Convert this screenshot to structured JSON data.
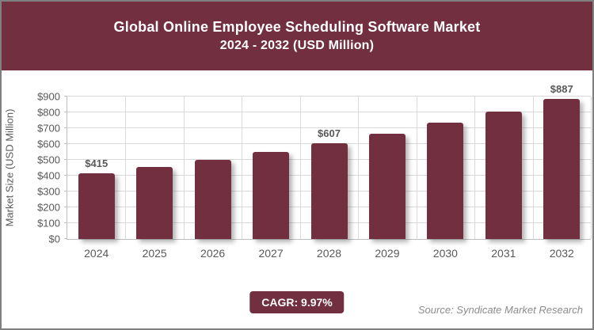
{
  "header": {
    "title_line1": "Global Online Employee Scheduling Software Market",
    "title_line2": "2024 - 2032 (USD Million)"
  },
  "chart_data": {
    "type": "bar",
    "title": "Global Online Employee Scheduling Software Market",
    "subtitle": "2024 - 2032 (USD Million)",
    "categories": [
      "2024",
      "2025",
      "2026",
      "2027",
      "2028",
      "2029",
      "2030",
      "2031",
      "2032"
    ],
    "values": [
      415,
      456,
      502,
      552,
      607,
      667,
      734,
      807,
      887
    ],
    "data_labels": [
      "$415",
      "",
      "",
      "",
      "$607",
      "",
      "",
      "",
      "$887"
    ],
    "xlabel": "",
    "ylabel": "Market Size (USD Million)",
    "ylim": [
      0,
      900
    ],
    "ytick_step": 100,
    "ytick_prefix": "$",
    "grid": "both",
    "legend_position": "none",
    "bar_color": "#722F40"
  },
  "colors": {
    "accent": "#722F40",
    "axis_text": "#595959",
    "gridline": "#D9D9D9",
    "axis_line": "#BFBFBF",
    "source_text": "#8C8C8C"
  },
  "footer": {
    "cagr_label": "CAGR: 9.97%",
    "source": "Source: Syndicate Market Research"
  }
}
